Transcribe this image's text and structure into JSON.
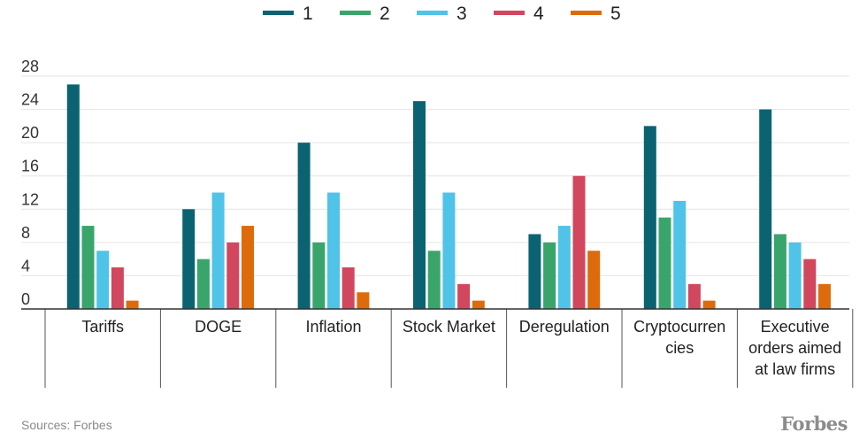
{
  "chart_data": {
    "type": "bar",
    "categories": [
      [
        "Tariffs"
      ],
      [
        "DOGE"
      ],
      [
        "Inflation"
      ],
      [
        "Stock Market"
      ],
      [
        "Deregulation"
      ],
      [
        "Cryptocurren",
        "cies"
      ],
      [
        "Executive",
        "orders aimed",
        "at law firms"
      ]
    ],
    "series": [
      {
        "name": "1",
        "color": "#0b6372",
        "values": [
          27,
          12,
          20,
          25,
          9,
          22,
          24
        ]
      },
      {
        "name": "2",
        "color": "#3aa56b",
        "values": [
          10,
          6,
          8,
          7,
          8,
          11,
          9
        ]
      },
      {
        "name": "3",
        "color": "#4fc3e8",
        "values": [
          7,
          14,
          14,
          14,
          10,
          13,
          8
        ]
      },
      {
        "name": "4",
        "color": "#d1475e",
        "values": [
          5,
          8,
          5,
          3,
          16,
          3,
          6
        ]
      },
      {
        "name": "5",
        "color": "#dd6b0c",
        "values": [
          1,
          10,
          2,
          1,
          7,
          1,
          3
        ]
      }
    ],
    "yticks": [
      0,
      4,
      8,
      12,
      16,
      20,
      24,
      28
    ],
    "ylim": [
      0,
      28
    ],
    "grid": true,
    "legend_position": "top-center"
  },
  "footer": {
    "source": "Sources: Forbes",
    "brand": "Forbes"
  }
}
